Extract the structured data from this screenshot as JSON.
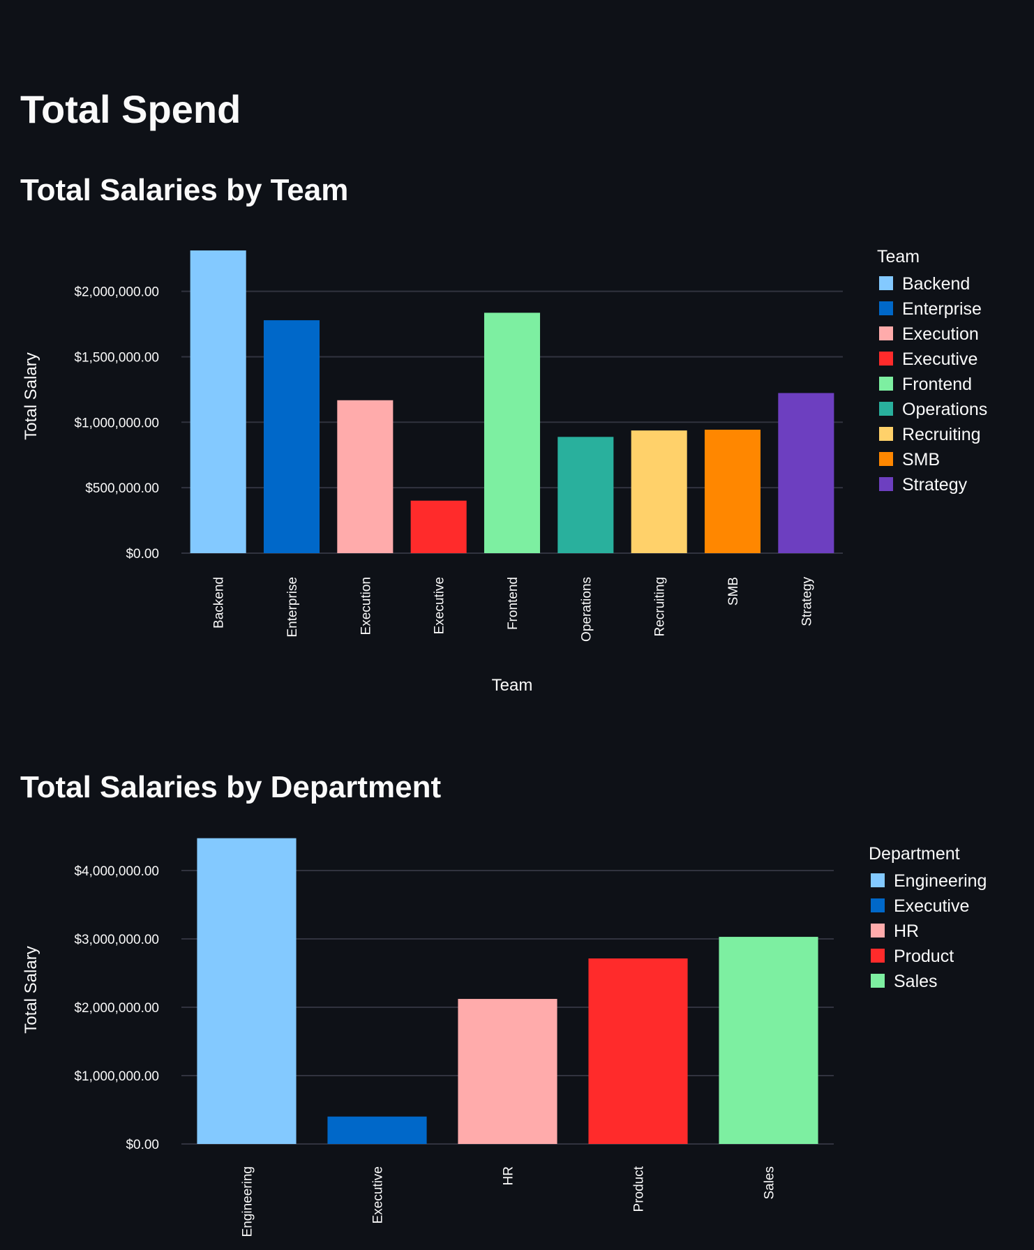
{
  "page": {
    "title": "Total Spend"
  },
  "theme": {
    "background": "#0e1117",
    "text": "#fafafa",
    "grid": "#31333f"
  },
  "chart_data": [
    {
      "type": "bar",
      "title": "Total Salaries by Team",
      "xlabel": "Team",
      "ylabel": "Total Salary",
      "categories": [
        "Backend",
        "Enterprise",
        "Execution",
        "Executive",
        "Frontend",
        "Operations",
        "Recruiting",
        "SMB",
        "Strategy"
      ],
      "values": [
        2312000,
        1779000,
        1168000,
        401000,
        1836000,
        888000,
        937000,
        943000,
        1223000
      ],
      "colors": [
        "#83c9ff",
        "#0068c9",
        "#ffabab",
        "#ff2b2b",
        "#7defa1",
        "#29b09d",
        "#ffd16a",
        "#ff8700",
        "#6d3fc0"
      ],
      "yticks": [
        0,
        500000,
        1000000,
        1500000,
        2000000
      ],
      "ytick_labels": [
        "$0.00",
        "$500,000.00",
        "$1,000,000.00",
        "$1,500,000.00",
        "$2,000,000.00"
      ],
      "ylim": [
        0,
        2312000
      ],
      "grid": true,
      "legend": {
        "title": "Team",
        "placement": "right"
      }
    },
    {
      "type": "bar",
      "title": "Total Salaries by Department",
      "xlabel": "",
      "ylabel": "Total Salary",
      "categories": [
        "Engineering",
        "Executive",
        "HR",
        "Product",
        "Sales"
      ],
      "values": [
        4473000,
        401000,
        2122000,
        2714000,
        3030000
      ],
      "colors": [
        "#83c9ff",
        "#0068c9",
        "#ffabab",
        "#ff2b2b",
        "#7defa1"
      ],
      "yticks": [
        0,
        1000000,
        2000000,
        3000000,
        4000000
      ],
      "ytick_labels": [
        "$0.00",
        "$1,000,000.00",
        "$2,000,000.00",
        "$3,000,000.00",
        "$4,000,000.00"
      ],
      "ylim": [
        0,
        4473000
      ],
      "grid": true,
      "legend": {
        "title": "Department",
        "placement": "right"
      }
    }
  ]
}
